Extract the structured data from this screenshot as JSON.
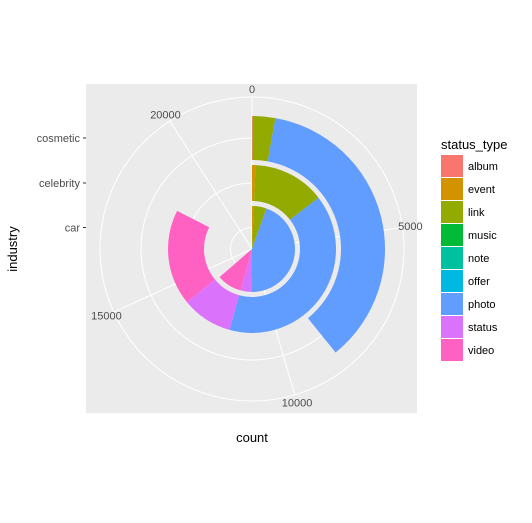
{
  "chart_data": {
    "type": "pie",
    "subtype": "stacked-bar-polar",
    "xlabel": "industry",
    "ylabel": "count",
    "categories": [
      "car",
      "celebrity",
      "cosmetic"
    ],
    "radial_tick_labels": [
      "car",
      "celebrity",
      "cosmetic"
    ],
    "angular_ticks": [
      0,
      5000,
      10000,
      15000,
      20000
    ],
    "angular_tick_labels": [
      "0",
      "5000",
      "10000",
      "15000",
      "20000"
    ],
    "angular_range": [
      0,
      22000
    ],
    "legend_title": "status_type",
    "legend_position": "right",
    "series": [
      {
        "name": "album",
        "color": "#F8766D",
        "values": [
          0,
          0,
          20
        ]
      },
      {
        "name": "event",
        "color": "#D39200",
        "values": [
          150,
          150,
          0
        ]
      },
      {
        "name": "link",
        "color": "#93AA00",
        "values": [
          1050,
          3050,
          600
        ]
      },
      {
        "name": "music",
        "color": "#00BA38",
        "values": [
          0,
          0,
          0
        ]
      },
      {
        "name": "note",
        "color": "#00C19F",
        "values": [
          0,
          0,
          0
        ]
      },
      {
        "name": "offer",
        "color": "#00B9E3",
        "values": [
          0,
          0,
          0
        ]
      },
      {
        "name": "photo",
        "color": "#619CFF",
        "values": [
          9800,
          8750,
          8000
        ]
      },
      {
        "name": "status",
        "color": "#DB72FB",
        "values": [
          950,
          2150,
          0
        ]
      },
      {
        "name": "video",
        "color": "#FF61C3",
        "values": [
          2050,
          4050,
          0
        ]
      }
    ]
  },
  "colors": {
    "panel_bg": "#EBEBEB",
    "grid": "#FFFFFF",
    "tick": "#333333"
  }
}
